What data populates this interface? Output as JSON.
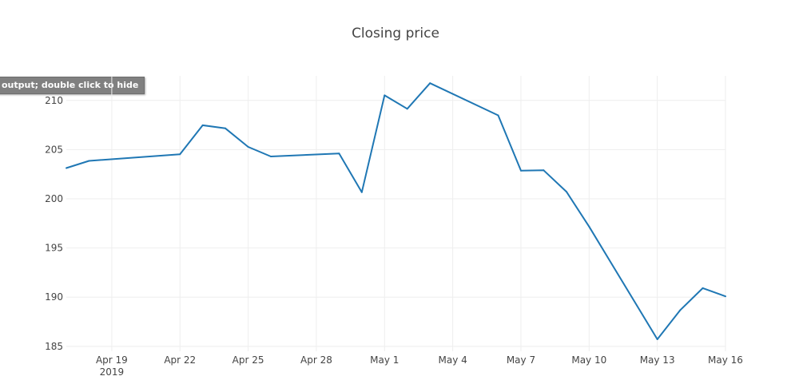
{
  "overlay": {
    "hide_text": "output; double click to hide"
  },
  "colors": {
    "line": "#1f77b4",
    "grid": "#eeeeee",
    "text": "#444444"
  },
  "chart_data": {
    "type": "line",
    "title": "Closing price",
    "xlabel": "",
    "ylabel": "",
    "grid": true,
    "legend": "none",
    "x_range": [
      "2019-04-17",
      "2019-05-16"
    ],
    "ylim": [
      184.5,
      212.5
    ],
    "y_ticks": [
      185,
      190,
      195,
      200,
      205,
      210
    ],
    "x_ticks": [
      {
        "date": "2019-04-19",
        "label": "Apr 19",
        "sublabel": "2019"
      },
      {
        "date": "2019-04-22",
        "label": "Apr 22",
        "sublabel": ""
      },
      {
        "date": "2019-04-25",
        "label": "Apr 25",
        "sublabel": ""
      },
      {
        "date": "2019-04-28",
        "label": "Apr 28",
        "sublabel": ""
      },
      {
        "date": "2019-05-01",
        "label": "May 1",
        "sublabel": ""
      },
      {
        "date": "2019-05-04",
        "label": "May 4",
        "sublabel": ""
      },
      {
        "date": "2019-05-07",
        "label": "May 7",
        "sublabel": ""
      },
      {
        "date": "2019-05-10",
        "label": "May 10",
        "sublabel": ""
      },
      {
        "date": "2019-05-13",
        "label": "May 13",
        "sublabel": ""
      },
      {
        "date": "2019-05-16",
        "label": "May 16",
        "sublabel": ""
      }
    ],
    "series": [
      {
        "x": [
          "2019-04-17",
          "2019-04-18",
          "2019-04-22",
          "2019-04-23",
          "2019-04-24",
          "2019-04-25",
          "2019-04-26",
          "2019-04-29",
          "2019-04-30",
          "2019-05-01",
          "2019-05-02",
          "2019-05-03",
          "2019-05-06",
          "2019-05-07",
          "2019-05-08",
          "2019-05-09",
          "2019-05-10",
          "2019-05-13",
          "2019-05-14",
          "2019-05-15",
          "2019-05-16"
        ],
        "y": [
          203.13,
          203.86,
          204.53,
          207.48,
          207.16,
          205.28,
          204.3,
          204.61,
          200.67,
          210.52,
          209.15,
          211.75,
          208.48,
          202.86,
          202.9,
          200.72,
          197.18,
          185.72,
          188.66,
          190.92,
          190.08
        ]
      }
    ]
  }
}
